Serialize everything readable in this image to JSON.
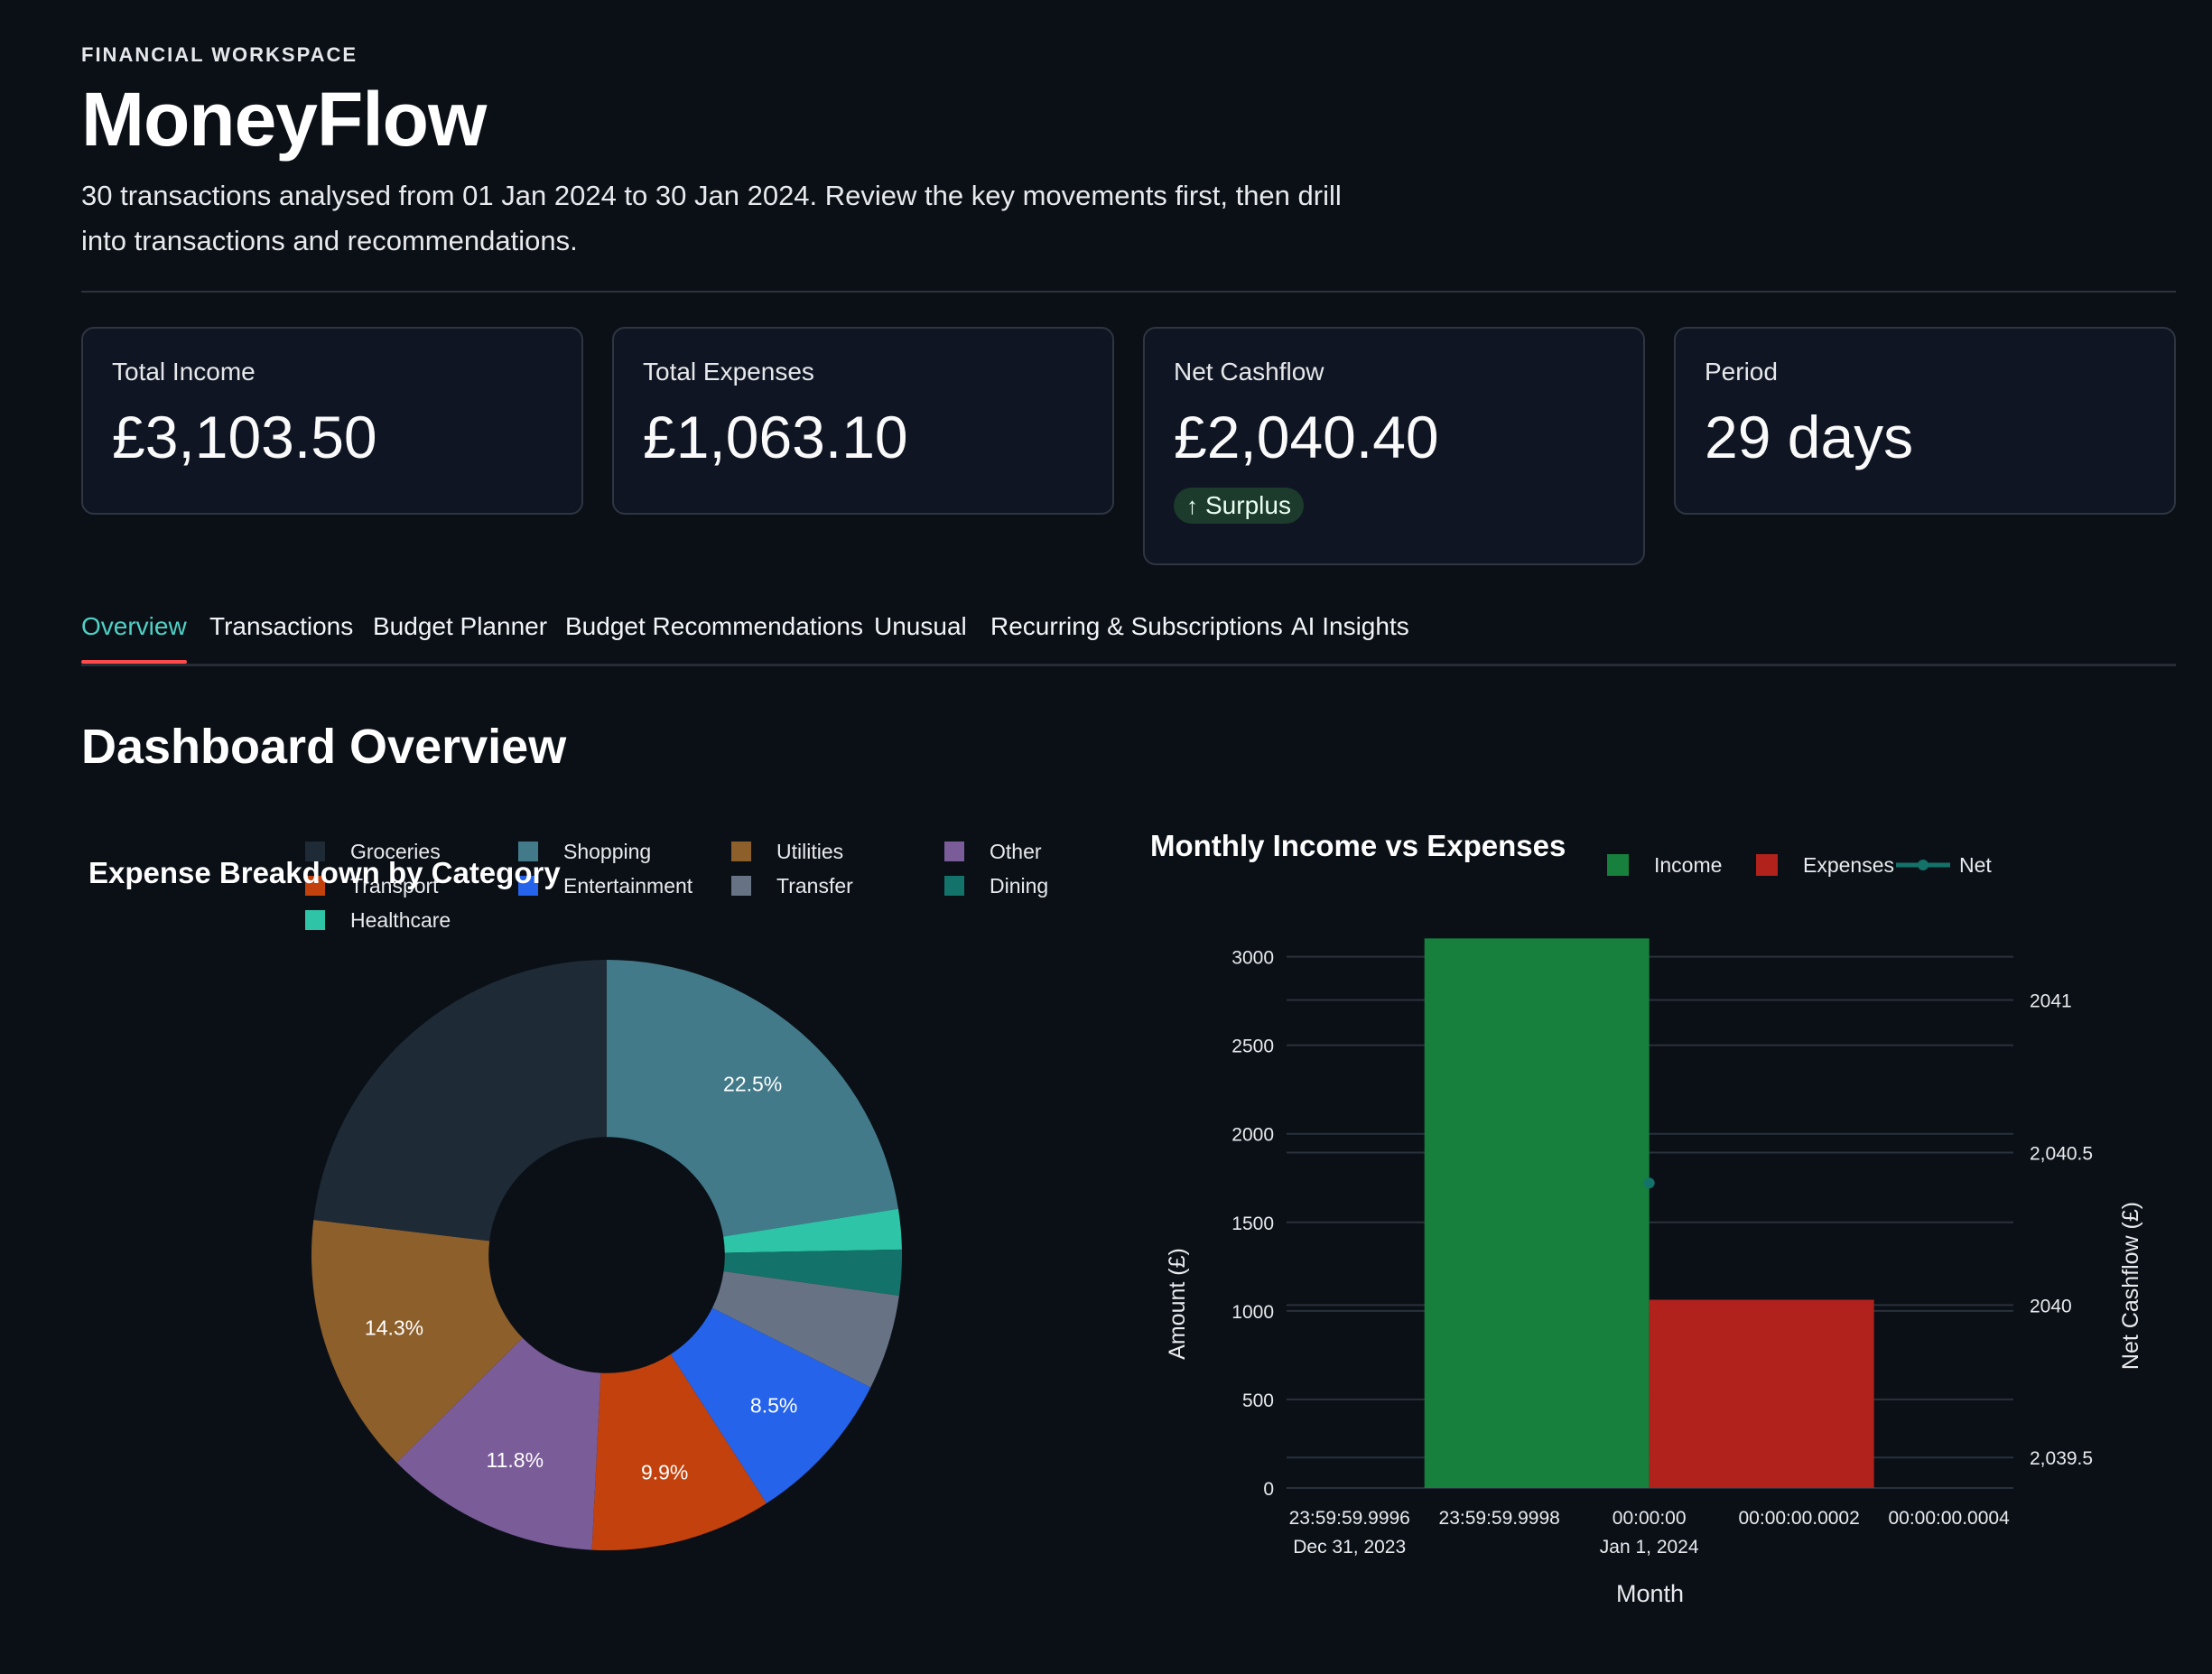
{
  "header": {
    "eyebrow": "FINANCIAL WORKSPACE",
    "title": "MoneyFlow",
    "subtitle": "30 transactions analysed from 01 Jan 2024 to 30 Jan 2024. Review the key movements first, then drill into transactions and recommendations."
  },
  "metrics": [
    {
      "label": "Total Income",
      "value": "£3,103.50"
    },
    {
      "label": "Total Expenses",
      "value": "£1,063.10"
    },
    {
      "label": "Net Cashflow",
      "value": "£2,040.40",
      "delta": "Surplus",
      "delta_color": "#1c3b2c"
    },
    {
      "label": "Period",
      "value": "29 days"
    }
  ],
  "tabs": [
    {
      "label": "Overview",
      "active": true
    },
    {
      "label": "Transactions"
    },
    {
      "label": "Budget Planner"
    },
    {
      "label": "Budget Recommendations"
    },
    {
      "label": "Unusual"
    },
    {
      "label": "Recurring & Subscriptions"
    },
    {
      "label": "AI Insights"
    }
  ],
  "section": {
    "title": "Dashboard Overview"
  },
  "chart_data": [
    {
      "type": "pie",
      "title": "Expense Breakdown by Category",
      "hole": 0.4,
      "legend_position": "top",
      "slices": [
        {
          "label": "Shopping",
          "pct": 22.5,
          "color": "#437a8a",
          "show_label": true
        },
        {
          "label": "Healthcare",
          "pct": 2.2,
          "color": "#2ec4a8",
          "show_label": false
        },
        {
          "label": "Dining",
          "pct": 2.5,
          "color": "#137269",
          "show_label": false
        },
        {
          "label": "Transfer",
          "pct": 5.2,
          "color": "#677284",
          "show_label": false
        },
        {
          "label": "Entertainment",
          "pct": 8.5,
          "color": "#2563eb",
          "show_label": true
        },
        {
          "label": "Transport",
          "pct": 9.9,
          "color": "#c2410c",
          "show_label": true
        },
        {
          "label": "Other",
          "pct": 11.8,
          "color": "#7a5c99",
          "show_label": true
        },
        {
          "label": "Utilities",
          "pct": 14.3,
          "color": "#8d5f2b",
          "show_label": true
        },
        {
          "label": "Groceries",
          "pct": 23.1,
          "color": "#1e2a36",
          "show_label": false
        }
      ],
      "legend": [
        "Groceries",
        "Shopping",
        "Utilities",
        "Other",
        "Transport",
        "Entertainment",
        "Transfer",
        "Dining",
        "Healthcare"
      ]
    },
    {
      "type": "bar",
      "title": "Monthly Income vs Expenses",
      "xlabel": "Month",
      "ylabel": "Amount (£)",
      "y2label": "Net Cashflow (£)",
      "ylim": [
        0,
        3100
      ],
      "y2lim": [
        2039.4,
        2041.2
      ],
      "yticks": [
        "0",
        "500",
        "1000",
        "1500",
        "2000",
        "2500",
        "3000"
      ],
      "y2ticks": [
        {
          "value": 2039.5,
          "label": "2,039.5"
        },
        {
          "value": 2040,
          "label": "2040"
        },
        {
          "value": 2040.5,
          "label": "2,040.5"
        },
        {
          "value": 2041,
          "label": "2041"
        }
      ],
      "xticks": [
        {
          "line1": "23:59:59.9996",
          "line2": "Dec 31, 2023"
        },
        {
          "line1": "23:59:59.9998",
          "line2": ""
        },
        {
          "line1": "00:00:00",
          "line2": "Jan 1, 2024"
        },
        {
          "line1": "00:00:00.0002",
          "line2": ""
        },
        {
          "line1": "00:00:00.0004",
          "line2": ""
        }
      ],
      "series": [
        {
          "name": "Income",
          "kind": "bar",
          "color": "#16803c",
          "values": [
            3103.5
          ]
        },
        {
          "name": "Expenses",
          "kind": "bar",
          "color": "#b1221c",
          "values": [
            1063.1
          ]
        },
        {
          "name": "Net",
          "kind": "line",
          "color": "#137269",
          "values": [
            2040.4
          ]
        }
      ]
    }
  ]
}
